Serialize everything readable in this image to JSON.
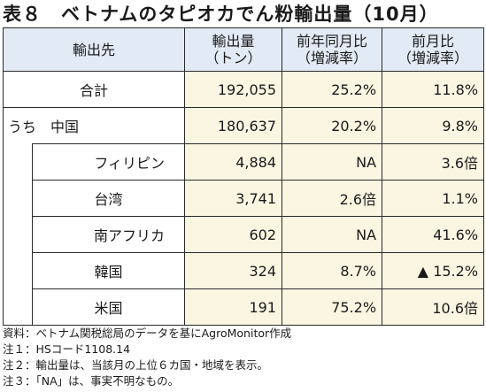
{
  "title": "表８　ベトナムのタピオカでん粉輸出量（10月）",
  "headers": {
    "col1": "輸出先",
    "col2_line1": "輸出量",
    "col2_line2": "（トン）",
    "col3_line1": "前年同月比",
    "col3_line2": "（増減率）",
    "col4_line1": "前月比",
    "col4_line2": "（増減率）"
  },
  "rows": [
    {
      "label": "合計",
      "volume": "192,055",
      "yoy": "25.2%",
      "mom": "11.8%"
    },
    {
      "label": "うち　中国",
      "volume": "180,637",
      "yoy": "20.2%",
      "mom": "9.8%"
    },
    {
      "label": "フィリピン",
      "volume": "4,884",
      "yoy": "NA",
      "mom": "3.6倍"
    },
    {
      "label": "台湾",
      "volume": "3,741",
      "yoy": "2.6倍",
      "mom": "1.1%"
    },
    {
      "label": "南アフリカ",
      "volume": "602",
      "yoy": "NA",
      "mom": "41.6%"
    },
    {
      "label": "韓国",
      "volume": "324",
      "yoy": "8.7%",
      "mom": "▲ 15.2%"
    },
    {
      "label": "米国",
      "volume": "191",
      "yoy": "75.2%",
      "mom": "10.6倍"
    }
  ],
  "notes": [
    "資料：ベトナム関税総局のデータを基にAgroMonitor作成",
    "注１：HSコード1108.14",
    "注２：輸出量は、当該月の上位６カ国・地域を表示。",
    "注３：「NA」は、事実不明なもの。"
  ]
}
